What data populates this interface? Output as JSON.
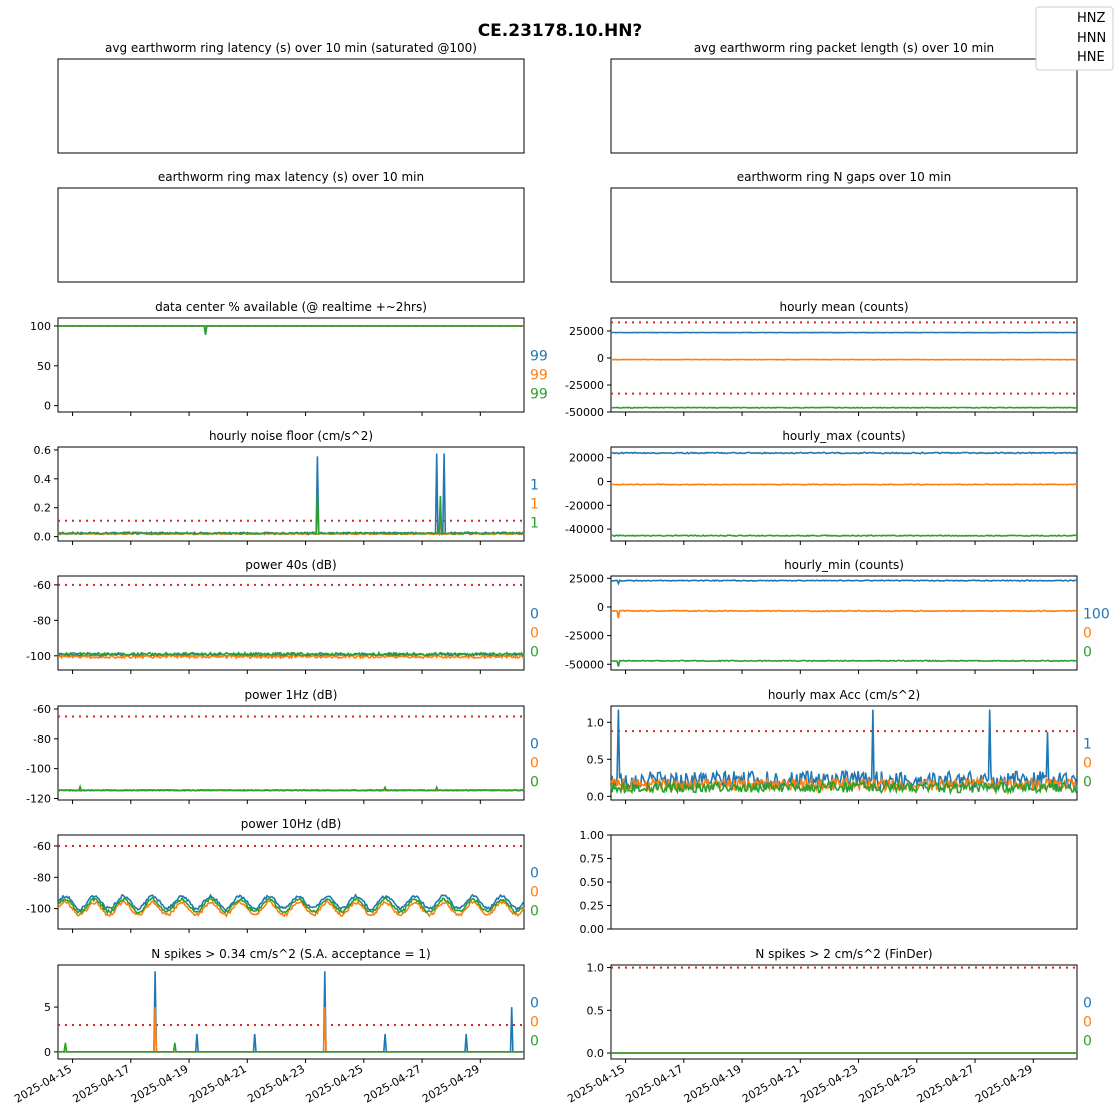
{
  "figure": {
    "title": "CE.23178.10.HN?",
    "legend": {
      "placement": "top-right",
      "entries": [
        "HNZ",
        "HNN",
        "HNE"
      ]
    },
    "colors": {
      "HNZ": "#1f77b4",
      "HNN": "#ff7f0e",
      "HNE": "#2ca02c",
      "threshold": "#d62728"
    },
    "date_ticks": [
      "2025-04-15",
      "2025-04-17",
      "2025-04-19",
      "2025-04-21",
      "2025-04-23",
      "2025-04-25",
      "2025-04-27",
      "2025-04-29"
    ],
    "x_range": [
      "2025-04-14T12:00",
      "2025-04-30T12:00"
    ]
  },
  "chart_data": [
    {
      "id": "p0",
      "type": "line",
      "title": "avg earthworm ring latency (s)   over 10 min (saturated @100)",
      "empty": true,
      "yticks": [],
      "series": []
    },
    {
      "id": "p1",
      "type": "line",
      "title": "avg earthworm ring packet length (s)   over 10 min",
      "empty": true,
      "yticks": [],
      "series": []
    },
    {
      "id": "p2",
      "type": "line",
      "title": "earthworm ring max latency (s)   over 10 min",
      "empty": true,
      "yticks": [],
      "series": []
    },
    {
      "id": "p3",
      "type": "line",
      "title": "earthworm ring N gaps   over 10 min",
      "empty": true,
      "yticks": [],
      "series": []
    },
    {
      "id": "p4",
      "type": "line",
      "title": "data center % available (@ realtime +~2hrs)",
      "ylim": [
        -8,
        110
      ],
      "yticks": [
        0,
        50,
        100
      ],
      "threshold": [
        100
      ],
      "side_values": [
        "99",
        "99",
        "99"
      ],
      "series": [
        {
          "base": 100,
          "noise": 0,
          "spikes": [
            [
              "2025-04-19T14:00",
              -11
            ]
          ]
        },
        {
          "base": 100,
          "noise": 0,
          "spikes": []
        },
        {
          "base": 100,
          "noise": 0,
          "spikes": [
            [
              "2025-04-19T14:00",
              -11
            ]
          ]
        }
      ]
    },
    {
      "id": "p5",
      "type": "line",
      "title": "hourly mean (counts)",
      "ylim": [
        -50000,
        37000
      ],
      "yticks": [
        -50000,
        -25000,
        0,
        25000
      ],
      "threshold": [
        33000,
        -33000
      ],
      "side_values": [],
      "series": [
        {
          "base": 23500,
          "noise": 150
        },
        {
          "base": -1500,
          "noise": 200
        },
        {
          "base": -46000,
          "noise": 300
        }
      ]
    },
    {
      "id": "p6",
      "type": "line",
      "title": "hourly noise floor (cm/s^2)",
      "ylim": [
        -0.03,
        0.62
      ],
      "yticks": [
        0.0,
        0.2,
        0.4,
        0.6
      ],
      "yfmt": 1,
      "threshold": [
        0.11
      ],
      "side_values": [
        "1",
        "1",
        "1"
      ],
      "series": [
        {
          "base": 0.025,
          "noise": 0.006,
          "spikes": [
            [
              "2025-04-23T10:00",
              0.53
            ],
            [
              "2025-04-27T12:00",
              0.55
            ],
            [
              "2025-04-27T18:00",
              0.55
            ]
          ]
        },
        {
          "base": 0.02,
          "noise": 0.005,
          "spikes": [
            [
              "2025-04-27T15:00",
              0.12
            ]
          ]
        },
        {
          "base": 0.022,
          "noise": 0.005,
          "spikes": [
            [
              "2025-04-23T10:00",
              0.28
            ],
            [
              "2025-04-27T15:00",
              0.26
            ]
          ]
        }
      ]
    },
    {
      "id": "p7",
      "type": "line",
      "title": "hourly_max (counts)",
      "ylim": [
        -50000,
        29000
      ],
      "yticks": [
        -40000,
        -20000,
        0,
        20000
      ],
      "threshold": [],
      "side_values": [],
      "series": [
        {
          "base": 24000,
          "noise": 500
        },
        {
          "base": -2500,
          "noise": 300
        },
        {
          "base": -45500,
          "noise": 400
        }
      ]
    },
    {
      "id": "p8",
      "type": "line",
      "title": "power 40s (dB)",
      "ylim": [
        -108,
        -55
      ],
      "yticks": [
        -100,
        -80,
        -60
      ],
      "threshold": [
        -60
      ],
      "side_values": [
        "0",
        "0",
        "0"
      ],
      "series": [
        {
          "base": -99.5,
          "noise": 0.8
        },
        {
          "base": -100.5,
          "noise": 0.8
        },
        {
          "base": -99,
          "noise": 0.8
        }
      ]
    },
    {
      "id": "p9",
      "type": "line",
      "title": "hourly_min (counts)",
      "ylim": [
        -55000,
        27000
      ],
      "yticks": [
        -50000,
        -25000,
        0,
        25000
      ],
      "threshold": [],
      "side_values": [
        "100",
        "0",
        "0"
      ],
      "series": [
        {
          "base": 23000,
          "noise": 400,
          "spikes": [
            [
              "2025-04-14T18:00",
              -2500
            ]
          ]
        },
        {
          "base": -3500,
          "noise": 400,
          "spikes": [
            [
              "2025-04-14T18:00",
              -6500
            ]
          ]
        },
        {
          "base": -47000,
          "noise": 400,
          "spikes": [
            [
              "2025-04-14T18:00",
              -5000
            ]
          ]
        }
      ]
    },
    {
      "id": "p10",
      "type": "line",
      "title": "power 1Hz (dB)",
      "ylim": [
        -121,
        -58
      ],
      "yticks": [
        -120,
        -100,
        -80,
        -60
      ],
      "threshold": [
        -65
      ],
      "side_values": [
        "0",
        "0",
        "0"
      ],
      "series": [
        {
          "base": -114.5,
          "noise": 0.3
        },
        {
          "base": -114.5,
          "noise": 0.3
        },
        {
          "base": -114.5,
          "noise": 0.3,
          "spikes": [
            [
              "2025-04-15T06:00",
              2.5
            ],
            [
              "2025-04-25T18:00",
              2
            ],
            [
              "2025-04-27T12:00",
              2
            ]
          ]
        }
      ]
    },
    {
      "id": "p11",
      "type": "line",
      "title": "hourly max Acc (cm/s^2)",
      "ylim": [
        -0.05,
        1.22
      ],
      "yticks": [
        0.0,
        0.5,
        1.0
      ],
      "yfmt": 1,
      "threshold": [
        0.88
      ],
      "side_values": [
        "1",
        "0",
        "0"
      ],
      "series": [
        {
          "base": 0.22,
          "noise": 0.12,
          "spikes": [
            [
              "2025-04-14T18:00",
              0.95
            ],
            [
              "2025-04-23T12:00",
              0.95
            ],
            [
              "2025-04-27T12:00",
              0.95
            ],
            [
              "2025-04-29T12:00",
              0.65
            ]
          ]
        },
        {
          "base": 0.16,
          "noise": 0.08
        },
        {
          "base": 0.12,
          "noise": 0.07
        }
      ]
    },
    {
      "id": "p12",
      "type": "line",
      "title": "power 10Hz (dB)",
      "ylim": [
        -113,
        -53
      ],
      "yticks": [
        -100,
        -80,
        -60
      ],
      "threshold": [
        -60
      ],
      "side_values": [
        "0",
        "0",
        "0"
      ],
      "series": [
        {
          "base": -96,
          "noise": 1,
          "diurnal": 4
        },
        {
          "base": -100,
          "noise": 1,
          "diurnal": 4
        },
        {
          "base": -98,
          "noise": 1,
          "diurnal": 4
        }
      ]
    },
    {
      "id": "p13",
      "type": "line",
      "title": "",
      "empty": true,
      "ylim": [
        0,
        1
      ],
      "yticks": [
        0.0,
        0.25,
        0.5,
        0.75,
        1.0
      ],
      "yfmt": 2,
      "series": []
    },
    {
      "id": "p14",
      "type": "line",
      "title": "N spikes > 0.34 cm/s^2 (S.A. acceptance = 1)",
      "ylim": [
        -0.8,
        9.7
      ],
      "yticks": [
        0,
        5
      ],
      "threshold": [
        3
      ],
      "side_values": [
        "0",
        "0",
        "0"
      ],
      "series": [
        {
          "base": 0,
          "noise": 0,
          "spikes": [
            [
              "2025-04-17T20:00",
              9
            ],
            [
              "2025-04-23T16:00",
              9
            ],
            [
              "2025-04-30T02:00",
              5
            ],
            [
              "2025-04-19T06:00",
              2
            ],
            [
              "2025-04-21T06:00",
              2
            ],
            [
              "2025-04-25T18:00",
              2
            ],
            [
              "2025-04-28T12:00",
              2
            ]
          ]
        },
        {
          "base": 0,
          "noise": 0,
          "spikes": [
            [
              "2025-04-17T20:00",
              5
            ],
            [
              "2025-04-23T16:00",
              5
            ]
          ]
        },
        {
          "base": 0,
          "noise": 0,
          "spikes": [
            [
              "2025-04-14T18:00",
              1
            ],
            [
              "2025-04-18T12:00",
              1
            ]
          ]
        }
      ]
    },
    {
      "id": "p15",
      "type": "line",
      "title": "N spikes > 2 cm/s^2 (FinDer)",
      "ylim": [
        -0.07,
        1.03
      ],
      "yticks": [
        0.0,
        0.5,
        1.0
      ],
      "yfmt": 1,
      "threshold": [
        1.0
      ],
      "side_values": [
        "0",
        "0",
        "0"
      ],
      "series": [
        {
          "base": 0,
          "noise": 0
        },
        {
          "base": 0,
          "noise": 0
        },
        {
          "base": 0,
          "noise": 0
        }
      ]
    }
  ]
}
